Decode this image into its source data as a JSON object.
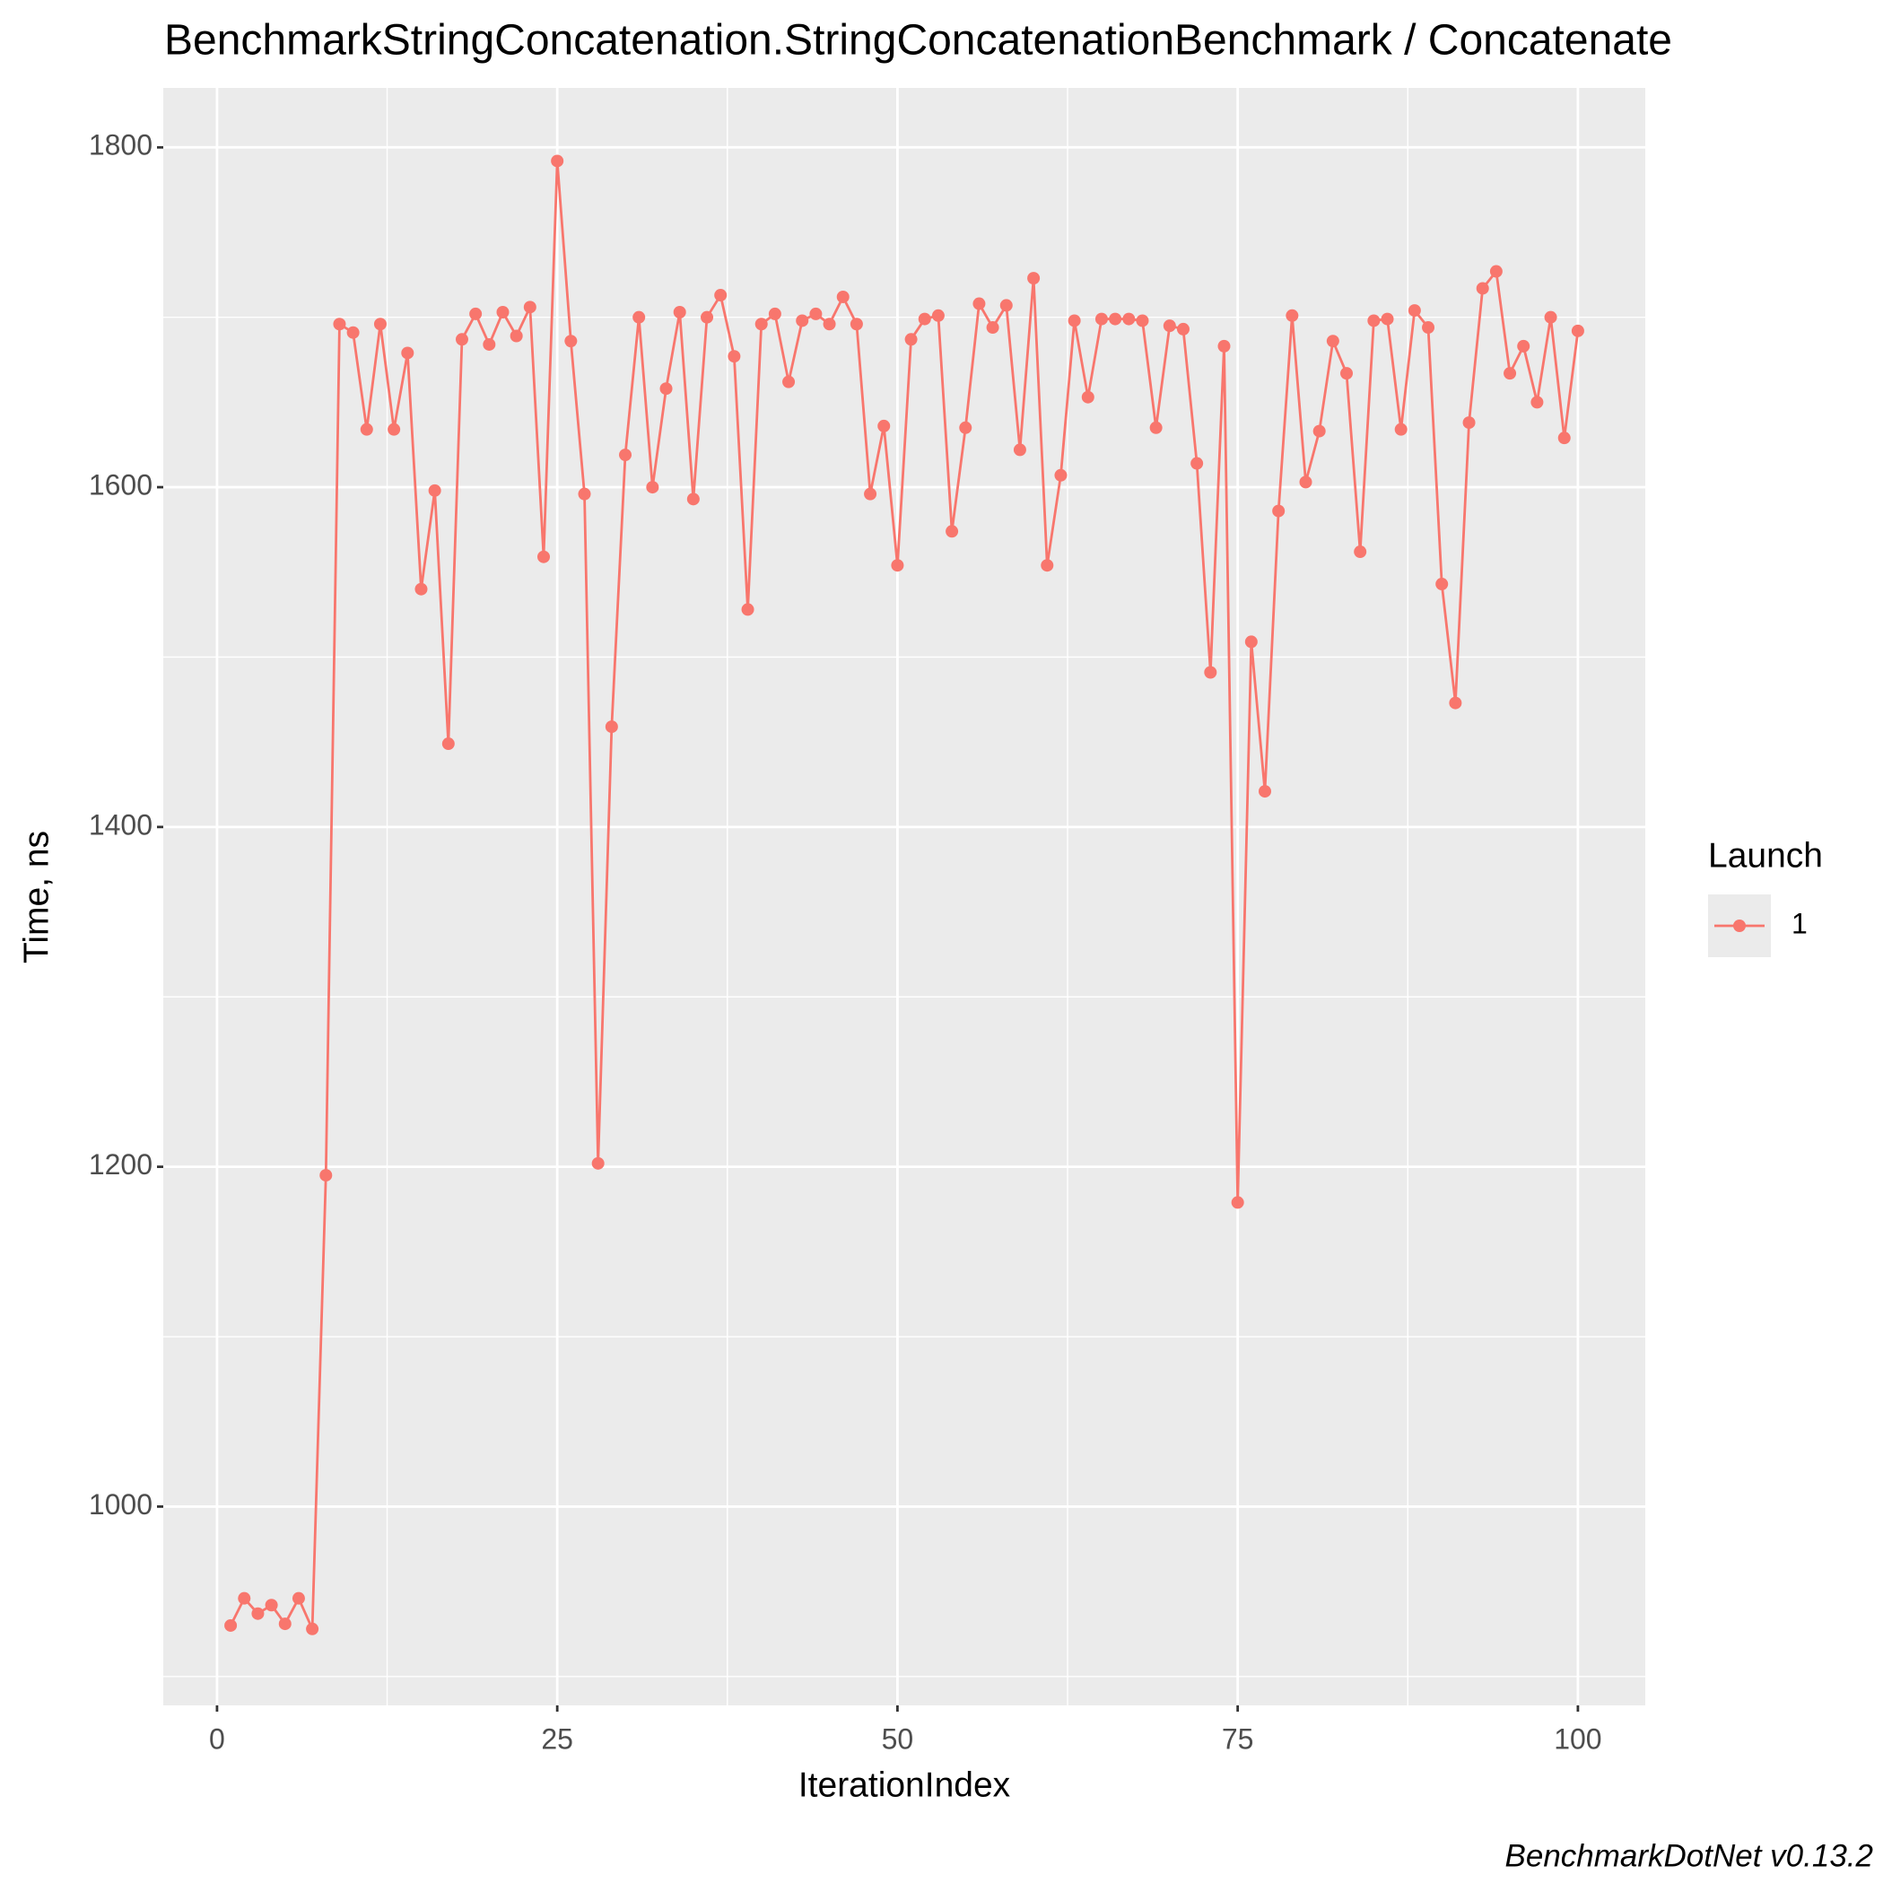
{
  "chart_data": {
    "type": "line",
    "title": "BenchmarkStringConcatenation.StringConcatenationBenchmark / Concatenate",
    "x_label": "IterationIndex",
    "y_label": "Time, ns",
    "caption": "BenchmarkDotNet v0.13.2",
    "legend_title": "Launch",
    "legend_position": "right",
    "grid": true,
    "xlim": [
      -3.95,
      104.95
    ],
    "xticks": [
      0,
      25,
      50,
      75,
      100
    ],
    "xminor": [
      12.5,
      37.5,
      62.5,
      87.5
    ],
    "ylim": [
      883,
      1835
    ],
    "yticks": [
      1000,
      1200,
      1400,
      1600,
      1800
    ],
    "yminor": [
      900,
      1100,
      1300,
      1500,
      1700
    ],
    "x": [
      1,
      2,
      3,
      4,
      5,
      6,
      7,
      8,
      9,
      10,
      11,
      12,
      13,
      14,
      15,
      16,
      17,
      18,
      19,
      20,
      21,
      22,
      23,
      24,
      25,
      26,
      27,
      28,
      29,
      30,
      31,
      32,
      33,
      34,
      35,
      36,
      37,
      38,
      39,
      40,
      41,
      42,
      43,
      44,
      45,
      46,
      47,
      48,
      49,
      50,
      51,
      52,
      53,
      54,
      55,
      56,
      57,
      58,
      59,
      60,
      61,
      62,
      63,
      64,
      65,
      66,
      67,
      68,
      69,
      70,
      71,
      72,
      73,
      74,
      75,
      76,
      77,
      78,
      79,
      80,
      81,
      82,
      83,
      84,
      85,
      86,
      87,
      88,
      89,
      90,
      91,
      92,
      93,
      94,
      95,
      96,
      97,
      98,
      99,
      100
    ],
    "series": [
      {
        "name": "1",
        "color": "#F8766D",
        "values": [
          930,
          946,
          937,
          942,
          931,
          946,
          928,
          1195,
          1696,
          1691,
          1634,
          1696,
          1634,
          1679,
          1540,
          1598,
          1449,
          1687,
          1702,
          1684,
          1703,
          1689,
          1706,
          1559,
          1792,
          1686,
          1596,
          1202,
          1459,
          1619,
          1700,
          1600,
          1658,
          1703,
          1593,
          1700,
          1713,
          1677,
          1528,
          1696,
          1702,
          1662,
          1698,
          1702,
          1696,
          1712,
          1696,
          1596,
          1636,
          1554,
          1687,
          1699,
          1701,
          1574,
          1635,
          1708,
          1694,
          1707,
          1622,
          1723,
          1554,
          1607,
          1698,
          1653,
          1699,
          1699,
          1699,
          1698,
          1635,
          1695,
          1693,
          1614,
          1491,
          1683,
          1179,
          1509,
          1421,
          1586,
          1701,
          1603,
          1633,
          1686,
          1667,
          1562,
          1698,
          1699,
          1634,
          1704,
          1694,
          1543,
          1473,
          1638,
          1717,
          1727,
          1667,
          1683,
          1650,
          1700,
          1629,
          1692
        ]
      }
    ]
  }
}
